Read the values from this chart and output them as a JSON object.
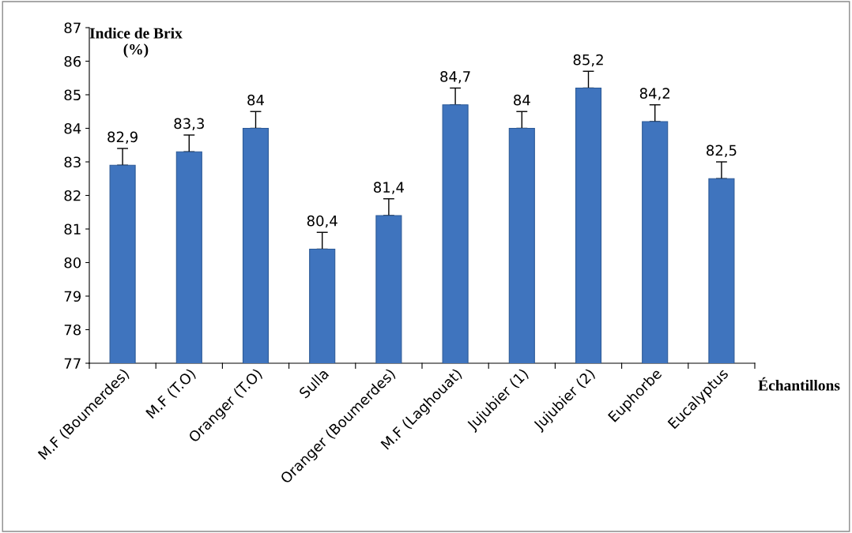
{
  "chart_data": {
    "type": "bar",
    "categories": [
      "M.F (Boumerdes)",
      "M.F (T.O)",
      "Oranger (T.O)",
      "Sulla",
      "Oranger (Boumerdes)",
      "M.F (Laghouat)",
      "Jujubier (1)",
      "Jujubier (2)",
      "Euphorbe",
      "Eucalyptus"
    ],
    "values": [
      82.9,
      83.3,
      84,
      80.4,
      81.4,
      84.7,
      84,
      85.2,
      84.2,
      82.5
    ],
    "value_labels": [
      "82,9",
      "83,3",
      "84",
      "80,4",
      "81,4",
      "84,7",
      "84",
      "85,2",
      "84,2",
      "82,5"
    ],
    "errors": [
      [
        82.9,
        83.4
      ],
      [
        83.3,
        83.8
      ],
      [
        84,
        84.5
      ],
      [
        80.4,
        80.9
      ],
      [
        81.4,
        81.9
      ],
      [
        84.7,
        85.2
      ],
      [
        84,
        84.5
      ],
      [
        85.2,
        85.7
      ],
      [
        84.2,
        84.7
      ],
      [
        82.5,
        83.0
      ]
    ],
    "color": "#3f74be",
    "ylabel": "Indice de Brix\n(%)",
    "xlabel": "Échantillons",
    "ylim": [
      77,
      87
    ],
    "yticks": [
      77,
      78,
      79,
      80,
      81,
      82,
      83,
      84,
      85,
      86,
      87
    ],
    "grid": false,
    "legend": false
  }
}
